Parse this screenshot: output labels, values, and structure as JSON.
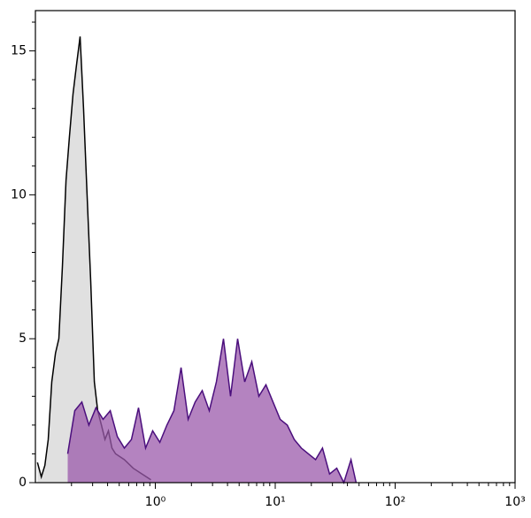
{
  "chart_data": {
    "type": "histogram-overlay",
    "log_x": true,
    "xlim": [
      0.1,
      1000
    ],
    "ylim": [
      0,
      16.4
    ],
    "xticks": [
      {
        "value": 1,
        "label": "10⁰"
      },
      {
        "value": 10,
        "label": "10¹"
      },
      {
        "value": 100,
        "label": "10²"
      },
      {
        "value": 1000,
        "label": "10³"
      }
    ],
    "yticks": [
      0,
      5,
      10,
      15
    ],
    "series": [
      {
        "color": "#000000",
        "fill": "#e0e0e0",
        "x": [
          0.104,
          0.112,
          0.12,
          0.128,
          0.137,
          0.147,
          0.157,
          0.168,
          0.18,
          0.192,
          0.206,
          0.22,
          0.236,
          0.252,
          0.27,
          0.289,
          0.31,
          0.331,
          0.355,
          0.38,
          0.406,
          0.435,
          0.466,
          0.552,
          0.654,
          0.775,
          0.919
        ],
        "values": [
          0.7,
          0.2,
          0.6,
          1.5,
          3.5,
          4.5,
          5,
          7.5,
          10.5,
          12,
          13.5,
          14.5,
          15.5,
          13,
          10,
          7,
          3.5,
          2.5,
          2,
          1.5,
          1.8,
          1.2,
          1,
          0.8,
          0.5,
          0.3,
          0.1
        ]
      },
      {
        "color": "#4b0f7d",
        "fill": "#9b5aab",
        "x": [
          0.186,
          0.213,
          0.244,
          0.279,
          0.32,
          0.367,
          0.421,
          0.482,
          0.552,
          0.632,
          0.724,
          0.83,
          0.95,
          1.09,
          1.25,
          1.43,
          1.64,
          1.88,
          2.15,
          2.46,
          2.82,
          3.23,
          3.7,
          4.24,
          4.86,
          5.56,
          6.37,
          7.3,
          8.37,
          9.59,
          11.0,
          12.6,
          14.4,
          16.5,
          18.9,
          21.7,
          24.8,
          28.4,
          32.6,
          37.3,
          42.8,
          47.3
        ],
        "values": [
          1,
          2.5,
          2.8,
          2,
          2.6,
          2.2,
          2.5,
          1.6,
          1.2,
          1.5,
          2.6,
          1.2,
          1.8,
          1.4,
          2,
          2.5,
          4,
          2.2,
          2.8,
          3.2,
          2.5,
          3.5,
          5,
          3,
          5,
          3.5,
          4.2,
          3,
          3.4,
          2.8,
          2.2,
          2,
          1.5,
          1.2,
          1,
          0.8,
          1.2,
          0.3,
          0.5,
          0,
          0.8,
          0
        ]
      }
    ]
  }
}
